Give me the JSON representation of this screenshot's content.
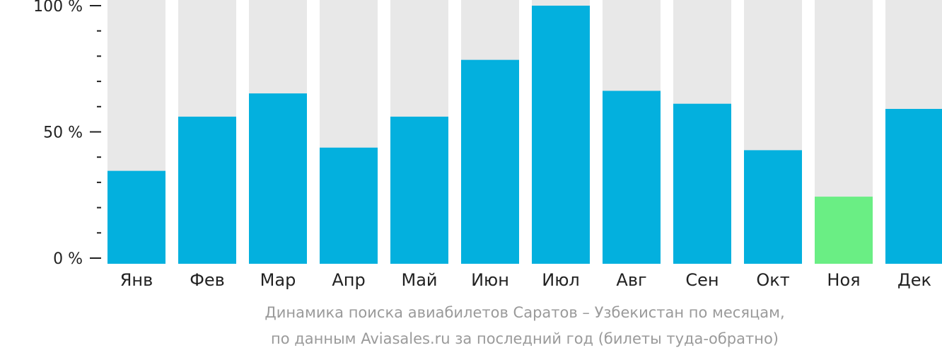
{
  "chart_data": {
    "type": "bar",
    "categories": [
      "Янв",
      "Фев",
      "Мар",
      "Апр",
      "Май",
      "Июн",
      "Июл",
      "Авг",
      "Сен",
      "Окт",
      "Ноя",
      "Дек"
    ],
    "values": [
      36,
      57,
      66,
      45,
      57,
      79,
      100,
      67,
      62,
      44,
      26,
      60
    ],
    "ylim": [
      0,
      100
    ],
    "y_ticks": [
      "0 %",
      "50 %",
      "100 %"
    ],
    "highlight_index": 10,
    "colors": {
      "bar": "#03b0de",
      "highlight": "#6aee84",
      "track": "#e8e8e8",
      "axis": "#222222"
    }
  },
  "caption": {
    "line1": "Динамика поиска авиабилетов Саратов – Узбекистан по месяцам,",
    "line2": "по данным Aviasales.ru за последний год (билеты туда-обратно)"
  }
}
